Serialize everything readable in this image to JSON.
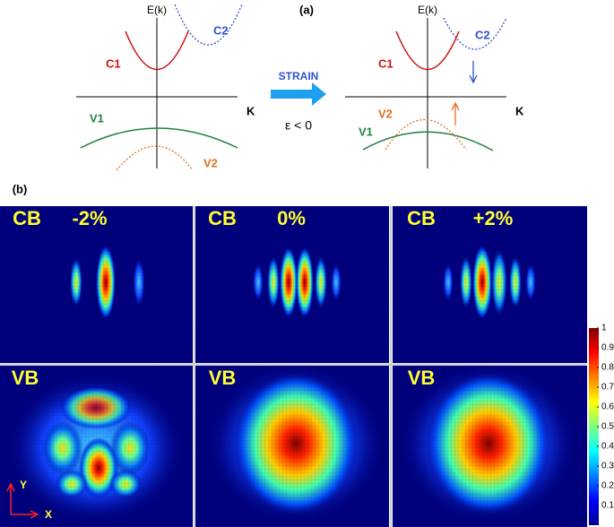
{
  "panel_a": {
    "label": "(a)",
    "left": {
      "y_axis": "E(k)",
      "x_axis": "K",
      "c1": "C1",
      "c2": "C2",
      "v1": "V1",
      "v2": "V2"
    },
    "arrow": {
      "label": "STRAIN",
      "condition": "ε < 0"
    },
    "right": {
      "y_axis": "E(k)",
      "x_axis": "K",
      "c1": "C1",
      "c2": "C2",
      "v1": "V1",
      "v2": "V2"
    }
  },
  "panel_b": {
    "label": "(b)",
    "cb_row": {
      "band": "CB",
      "strains": [
        "-2%",
        "0%",
        "+2%"
      ]
    },
    "vb_row": {
      "band": "VB"
    },
    "axes": {
      "y": "Y",
      "x": "X"
    },
    "colorbar": {
      "ticks": [
        1,
        0.9,
        0.8,
        0.7,
        0.6,
        0.5,
        0.4,
        0.3,
        0.2,
        0.1
      ]
    }
  }
}
